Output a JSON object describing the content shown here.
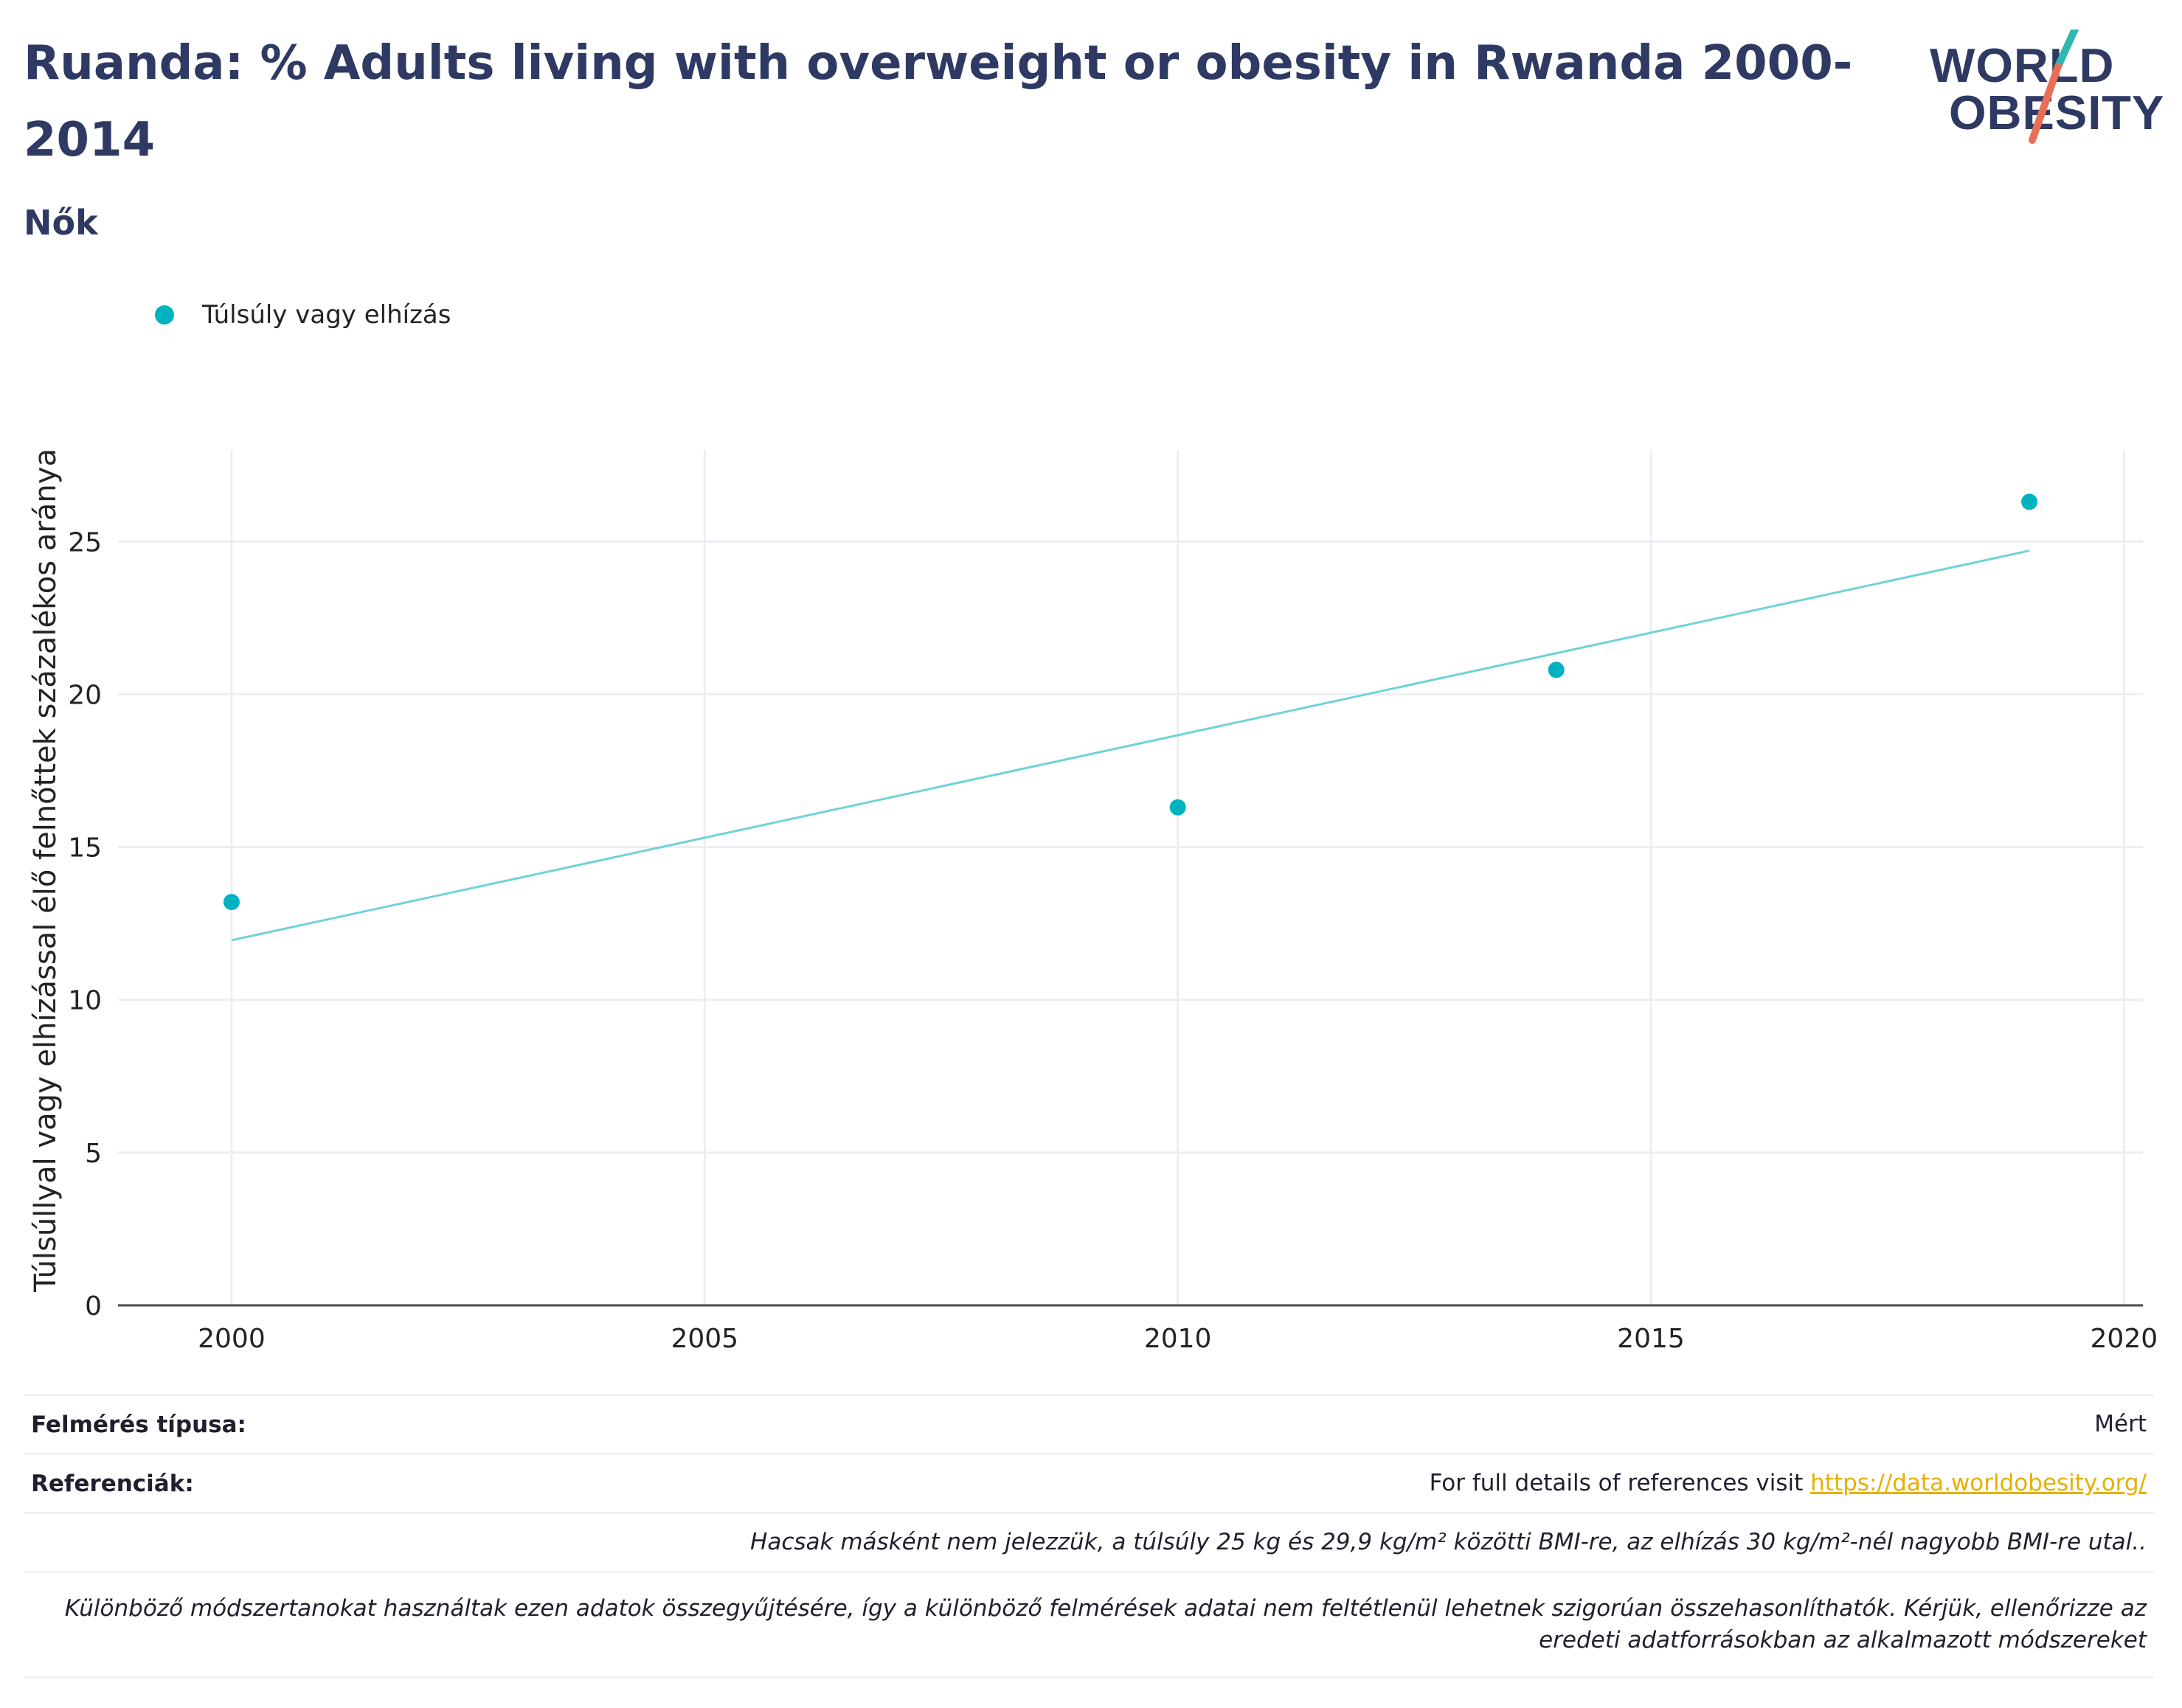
{
  "header": {
    "title": "Ruanda: % Adults living with overweight or obesity in Rwanda 2000-2014",
    "subtitle": "Nők"
  },
  "logo": {
    "top_text": "WORLD",
    "bottom_text": "OBESITY",
    "accent_teal": "#2db8b0",
    "accent_red": "#e76f57"
  },
  "legend": {
    "items": [
      {
        "label": "Túlsúly vagy elhízás",
        "color": "#00b2bf"
      }
    ]
  },
  "chart_data": {
    "type": "scatter",
    "title": "Ruanda: % Adults living with overweight or obesity in Rwanda 2000-2014",
    "subtitle": "Nők",
    "xlabel": "",
    "ylabel": "Túlsúllyal vagy elhízással élő felnőttek százalékos aránya",
    "xlim": [
      1998.8,
      2020.2
    ],
    "ylim": [
      0,
      28
    ],
    "x_ticks": [
      2000,
      2005,
      2010,
      2015,
      2020
    ],
    "y_ticks": [
      0,
      5,
      10,
      15,
      20,
      25
    ],
    "grid": true,
    "legend_position": "top-left",
    "series": [
      {
        "name": "Túlsúly vagy elhízás",
        "color": "#00b2bf",
        "points": [
          {
            "x": 2000,
            "y": 13.2
          },
          {
            "x": 2010,
            "y": 16.3
          },
          {
            "x": 2014,
            "y": 20.8
          },
          {
            "x": 2019,
            "y": 26.3
          }
        ]
      }
    ],
    "trendline": {
      "color": "#6fd3d8",
      "points": [
        {
          "x": 2000,
          "y": 11.95
        },
        {
          "x": 2019,
          "y": 24.7
        }
      ]
    }
  },
  "footer": {
    "survey_type_label": "Felmérés típusa:",
    "survey_type_value": "Mért",
    "references_label": "Referenciák:",
    "references_text": "For full details of references visit",
    "references_link": "https://data.worldobesity.org/",
    "definition_note": "Hacsak másként nem jelezzük, a túlsúly 25 kg és 29,9 kg/m² közötti BMI-re, az elhízás 30 kg/m²-nél nagyobb BMI-re utal..",
    "methodology_note": "Különböző módszertanokat használtak ezen adatok összegyűjtésére, így a különböző felmérések adatai nem feltétlenül lehetnek szigorúan összehasonlíthatók. Kérjük, ellenőrizze az eredeti adatforrásokban az alkalmazott módszereket"
  }
}
